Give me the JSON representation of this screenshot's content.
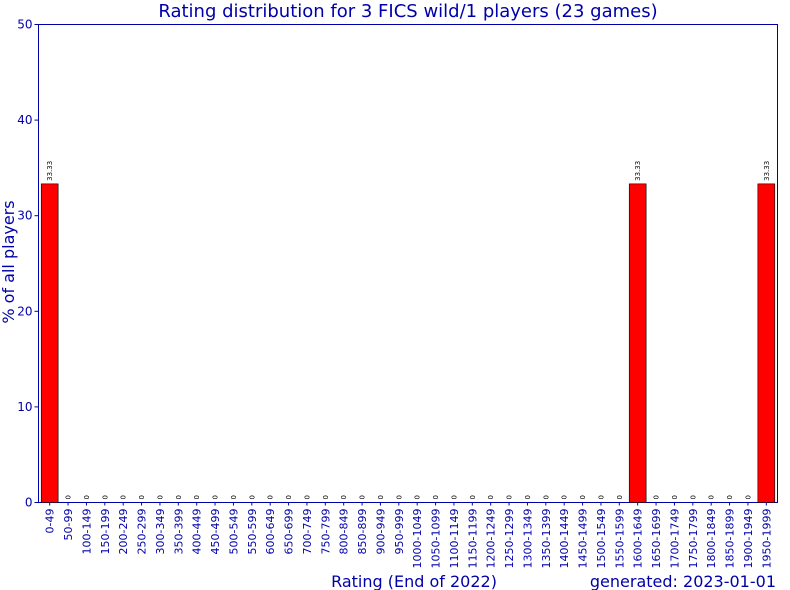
{
  "chart_data": {
    "type": "bar",
    "title": "Rating distribution for 3 FICS wild/1 players (23 games)",
    "xlabel": "Rating (End of 2022)",
    "ylabel": "% of all players",
    "footer": "generated: 2023-01-01",
    "ylim": [
      0,
      50
    ],
    "yticks": [
      0,
      10,
      20,
      30,
      40,
      50
    ],
    "grid": false,
    "bar_color": "#ff0000",
    "text_color": "#0000aa",
    "categories": [
      "0-49",
      "50-99",
      "100-149",
      "150-199",
      "200-249",
      "250-299",
      "300-349",
      "350-399",
      "400-449",
      "450-499",
      "500-549",
      "550-599",
      "600-649",
      "650-699",
      "700-749",
      "750-799",
      "800-849",
      "850-899",
      "900-949",
      "950-999",
      "1000-1049",
      "1050-1099",
      "1100-1149",
      "1150-1199",
      "1200-1249",
      "1250-1299",
      "1300-1349",
      "1350-1399",
      "1400-1449",
      "1450-1499",
      "1500-1549",
      "1550-1599",
      "1600-1649",
      "1650-1699",
      "1700-1749",
      "1750-1799",
      "1800-1849",
      "1850-1899",
      "1900-1949",
      "1950-1999"
    ],
    "values": [
      33.33,
      0,
      0,
      0,
      0,
      0,
      0,
      0,
      0,
      0,
      0,
      0,
      0,
      0,
      0,
      0,
      0,
      0,
      0,
      0,
      0,
      0,
      0,
      0,
      0,
      0,
      0,
      0,
      0,
      0,
      0,
      0,
      33.33,
      0,
      0,
      0,
      0,
      0,
      0,
      33.33
    ],
    "data_labels": [
      "33.33",
      "0",
      "0",
      "0",
      "0",
      "0",
      "0",
      "0",
      "0",
      "0",
      "0",
      "0",
      "0",
      "0",
      "0",
      "0",
      "0",
      "0",
      "0",
      "0",
      "0",
      "0",
      "0",
      "0",
      "0",
      "0",
      "0",
      "0",
      "0",
      "0",
      "0",
      "0",
      "33.33",
      "0",
      "0",
      "0",
      "0",
      "0",
      "0",
      "33.33"
    ]
  }
}
